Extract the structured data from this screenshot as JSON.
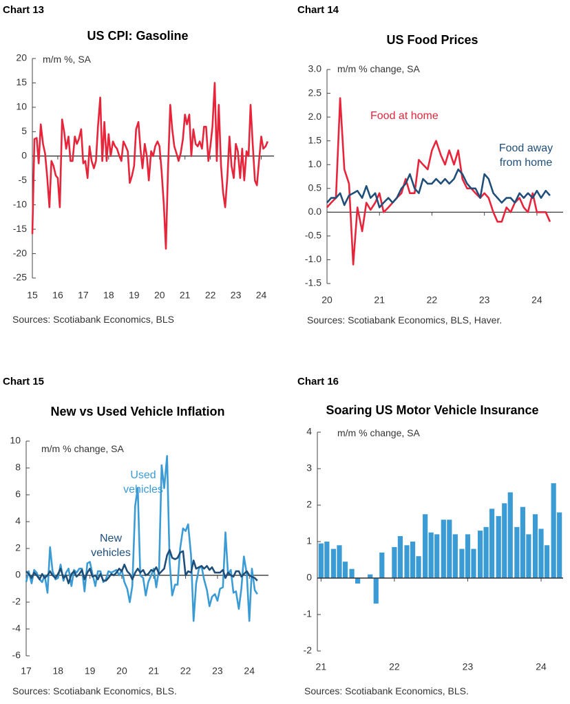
{
  "chart_data": [
    {
      "type": "line",
      "label": "Chart 13",
      "title": "US CPI: Gasoline",
      "y_label": "m/m %, SA",
      "source": "Sources: Scotiabank Economics, BLS",
      "color": "#e8243a",
      "x": [
        15,
        15.08,
        15.17,
        15.25,
        15.33,
        15.42,
        15.5,
        15.58,
        15.67,
        15.75,
        15.83,
        15.92,
        16,
        16.08,
        16.17,
        16.25,
        16.33,
        16.42,
        16.5,
        16.58,
        16.67,
        16.75,
        16.83,
        16.92,
        17,
        17.08,
        17.17,
        17.25,
        17.33,
        17.42,
        17.5,
        17.58,
        17.67,
        17.75,
        17.83,
        17.92,
        18,
        18.08,
        18.17,
        18.25,
        18.33,
        18.42,
        18.5,
        18.58,
        18.67,
        18.75,
        18.83,
        18.92,
        19,
        19.08,
        19.17,
        19.25,
        19.33,
        19.42,
        19.5,
        19.58,
        19.67,
        19.75,
        19.83,
        19.92,
        20,
        20.08,
        20.17,
        20.25,
        20.33,
        20.42,
        20.5,
        20.58,
        20.67,
        20.75,
        20.83,
        20.92,
        21,
        21.08,
        21.17,
        21.25,
        21.33,
        21.42,
        21.5,
        21.58,
        21.67,
        21.75,
        21.83,
        21.92,
        22,
        22.08,
        22.17,
        22.25,
        22.33,
        22.42,
        22.5,
        22.58,
        22.67,
        22.75,
        22.83,
        22.92,
        23,
        23.08,
        23.17,
        23.25,
        23.33,
        23.42,
        23.5,
        23.58,
        23.67,
        23.75,
        23.83,
        23.92,
        24,
        24.08,
        24.17,
        24.25
      ],
      "values": [
        -16,
        3.5,
        3.7,
        -1.5,
        6.5,
        2.5,
        0.5,
        -4,
        -10.5,
        -1,
        -2,
        -4,
        -4.5,
        -10.5,
        7.5,
        5,
        1.5,
        4,
        -1,
        -1,
        4,
        2.5,
        3.5,
        5.5,
        -1.5,
        -1,
        -4.5,
        2,
        -1,
        -2.5,
        -1,
        6,
        12,
        -1,
        7,
        -1,
        4.5,
        0,
        3,
        2,
        1.5,
        0,
        -1,
        3,
        2,
        1,
        -5.5,
        -4,
        -2,
        5.5,
        7,
        1.5,
        -2.5,
        2.5,
        0,
        -5,
        1,
        0,
        2,
        3,
        2,
        -3,
        -10,
        -19,
        -3.5,
        10.5,
        5.5,
        2,
        0.5,
        -1,
        0.5,
        3.5,
        8.5,
        6.5,
        8.5,
        0,
        5.5,
        2.5,
        2,
        3,
        1.5,
        6,
        6,
        -1,
        2,
        6,
        15,
        -1,
        10.5,
        -2,
        -7.5,
        -10.5,
        -4,
        4,
        -2,
        -4.5,
        2.5,
        1,
        -4.5,
        1.5,
        -5,
        1,
        0,
        10.5,
        2,
        -5,
        -6,
        -0.5,
        4,
        1.5,
        2,
        3
      ],
      "xlim": [
        15,
        24.5
      ],
      "xticks": [
        15,
        16,
        17,
        18,
        19,
        20,
        21,
        22,
        23,
        24
      ],
      "ylim": [
        -25,
        20
      ],
      "yticks": [
        -25,
        -20,
        -15,
        -10,
        -5,
        0,
        5,
        10,
        15,
        20
      ]
    },
    {
      "type": "line",
      "label": "Chart 14",
      "title": "US Food Prices",
      "y_label": "m/m % change, SA",
      "source": "Sources: Scotiabank Economics, BLS, Haver.",
      "x": [
        20,
        20.08,
        20.17,
        20.25,
        20.33,
        20.42,
        20.5,
        20.58,
        20.67,
        20.75,
        20.83,
        20.92,
        21,
        21.08,
        21.17,
        21.25,
        21.33,
        21.42,
        21.5,
        21.58,
        21.67,
        21.75,
        21.83,
        21.92,
        22,
        22.08,
        22.17,
        22.25,
        22.33,
        22.42,
        22.5,
        22.58,
        22.67,
        22.75,
        22.83,
        22.92,
        23,
        23.08,
        23.17,
        23.25,
        23.33,
        23.42,
        23.5,
        23.58,
        23.67,
        23.75,
        23.83,
        23.92,
        24,
        24.08,
        24.17,
        24.25
      ],
      "series": [
        {
          "name": "Food at home",
          "color": "#e8243a",
          "values": [
            0.1,
            0.2,
            0.3,
            2.4,
            0.9,
            0.6,
            -1.1,
            0.1,
            -0.4,
            0.2,
            0.05,
            0.2,
            0.4,
            0,
            0.1,
            0.2,
            0.3,
            0.4,
            0.7,
            0.4,
            0.4,
            1.1,
            1,
            0.9,
            1.3,
            1.5,
            1.2,
            1,
            1.3,
            1,
            1.3,
            0.7,
            0.5,
            0.5,
            0.4,
            0.3,
            0.4,
            0.3,
            0,
            -0.2,
            -0.2,
            0.1,
            0,
            0.2,
            0.3,
            0.1,
            0,
            0.4,
            0,
            0,
            0,
            -0.2
          ]
        },
        {
          "name": "Food away from home",
          "color": "#1f4e79",
          "values": [
            0.2,
            0.3,
            0.3,
            0.4,
            0.15,
            0.35,
            0.4,
            0.45,
            0.3,
            0.55,
            0.3,
            0.4,
            0.1,
            0.2,
            0.3,
            0.2,
            0.3,
            0.5,
            0.6,
            0.8,
            0.5,
            0.4,
            0.7,
            0.6,
            0.6,
            0.7,
            0.6,
            0.7,
            0.6,
            0.7,
            0.9,
            0.8,
            0.6,
            0.5,
            0.5,
            0.3,
            0.8,
            0.7,
            0.4,
            0.3,
            0.2,
            0.3,
            0.3,
            0.2,
            0.4,
            0.3,
            0.4,
            0.3,
            0.45,
            0.3,
            0.45,
            0.35
          ]
        }
      ],
      "xlim": [
        20,
        24.5
      ],
      "xticks": [
        20,
        21,
        22,
        23,
        24
      ],
      "ylim": [
        -1.5,
        3
      ],
      "yticks": [
        {
          "value": -1.5,
          "label": "-1.5"
        },
        {
          "value": -1,
          "label": "-1.0"
        },
        {
          "value": -0.5,
          "label": "-0.5"
        },
        {
          "value": 0,
          "label": "0.0"
        },
        {
          "value": 0.5,
          "label": "0.5"
        },
        {
          "value": 1,
          "label": "1.0"
        },
        {
          "value": 1.5,
          "label": "1.5"
        },
        {
          "value": 2,
          "label": "2.0"
        },
        {
          "value": 2.5,
          "label": "2.5"
        },
        {
          "value": 3,
          "label": "3.0"
        }
      ]
    },
    {
      "type": "line",
      "label": "Chart 15",
      "title": "New vs Used Vehicle Inflation",
      "y_label": "m/m % change, SA",
      "source": "Sources: Scotiabank Economics, BLS.",
      "x": [
        17,
        17.08,
        17.17,
        17.25,
        17.33,
        17.42,
        17.5,
        17.58,
        17.67,
        17.75,
        17.83,
        17.92,
        18,
        18.08,
        18.17,
        18.25,
        18.33,
        18.42,
        18.5,
        18.58,
        18.67,
        18.75,
        18.83,
        18.92,
        19,
        19.08,
        19.17,
        19.25,
        19.33,
        19.42,
        19.5,
        19.58,
        19.67,
        19.75,
        19.83,
        19.92,
        20,
        20.08,
        20.17,
        20.25,
        20.33,
        20.42,
        20.5,
        20.58,
        20.67,
        20.75,
        20.83,
        20.92,
        21,
        21.08,
        21.17,
        21.25,
        21.33,
        21.42,
        21.5,
        21.58,
        21.67,
        21.75,
        21.83,
        21.92,
        22,
        22.08,
        22.17,
        22.25,
        22.33,
        22.42,
        22.5,
        22.58,
        22.67,
        22.75,
        22.83,
        22.92,
        23,
        23.08,
        23.17,
        23.25,
        23.33,
        23.42,
        23.5,
        23.58,
        23.67,
        23.75,
        23.83,
        23.92,
        24,
        24.08,
        24.17,
        24.25
      ],
      "series": [
        {
          "name": "Used vehicles",
          "color": "#3a9bd5",
          "values": [
            -0.5,
            0.3,
            -0.6,
            0.4,
            0.2,
            -0.3,
            -0.5,
            0,
            -1.3,
            2.1,
            0.3,
            -0.3,
            -0.2,
            0.8,
            -0.4,
            0.2,
            0.5,
            -0.8,
            0.4,
            0.2,
            0.5,
            0.5,
            -1.2,
            0.9,
            1,
            0.1,
            -0.8,
            0.3,
            0.3,
            -0.5,
            -0.3,
            0.3,
            0.2,
            0.3,
            0.4,
            0,
            0.4,
            -0.5,
            -1,
            -2,
            -0.8,
            5.2,
            6.5,
            0,
            -0.2,
            -1.5,
            -0.5,
            0,
            0.5,
            -0.9,
            0.5,
            8.2,
            6.5,
            8.9,
            1,
            -1.5,
            -0.7,
            -0.7,
            2,
            3.5,
            3.3,
            3.8,
            1.5,
            -3.4,
            -0.6,
            0.5,
            0.7,
            -0.3,
            -1.1,
            -2.3,
            -1.6,
            -1.4,
            -1.9,
            -1,
            -0.9,
            3.2,
            0.1,
            0.4,
            -1.3,
            -1.2,
            -2.5,
            -1,
            1.4,
            0.1,
            -3.4,
            0.5,
            -1.1,
            -1.4
          ]
        },
        {
          "name": "New vehicles",
          "color": "#1f4e79",
          "values": [
            0.3,
            0.1,
            -0.2,
            0.2,
            0,
            -0.3,
            0.1,
            -0.2,
            0,
            0.3,
            0,
            -0.2,
            0.1,
            0.5,
            -0.2,
            0,
            -0.6,
            0.1,
            0.3,
            -0.1,
            0.1,
            0.4,
            -0.3,
            0.2,
            0.5,
            -0.1,
            0,
            -0.3,
            0.1,
            -0.4,
            -0.4,
            -0.2,
            0.1,
            0,
            0.2,
            0.5,
            0.3,
            0.8,
            0.3,
            0.1,
            -0.3,
            0.2,
            0.5,
            0.2,
            0.4,
            0,
            0.1,
            0.4,
            0.3,
            0.6,
            0.1,
            0.3,
            0.5,
            1.5,
            1.9,
            1.3,
            1.2,
            1.3,
            1.7,
            1.8,
            0,
            0.3,
            0.2,
            1.1,
            0.5,
            0.6,
            0.7,
            0.5,
            0.7,
            0.4,
            0.6,
            0.2,
            0.2,
            0.2,
            0.4,
            -0.2,
            0.2,
            0,
            -0.1,
            0.3,
            0.3,
            -0.1,
            0.1,
            0.3,
            0,
            -0.1,
            -0.2,
            -0.4
          ]
        }
      ],
      "xlim": [
        17,
        24.6
      ],
      "xticks": [
        17,
        18,
        19,
        20,
        21,
        22,
        23,
        24
      ],
      "ylim": [
        -6,
        10
      ],
      "yticks": [
        -6,
        -4,
        -2,
        0,
        2,
        4,
        6,
        8,
        10
      ]
    },
    {
      "type": "bar",
      "label": "Chart 16",
      "title": "Soaring US Motor Vehicle Insurance",
      "y_label": "m/m % change, SA",
      "source": "Sources: Scotiabank Economics, BLS.",
      "color": "#3a9bd5",
      "x": [
        21,
        21.08,
        21.17,
        21.25,
        21.33,
        21.42,
        21.5,
        21.58,
        21.67,
        21.75,
        21.83,
        21.92,
        22,
        22.08,
        22.17,
        22.25,
        22.33,
        22.42,
        22.5,
        22.58,
        22.67,
        22.75,
        22.83,
        22.92,
        23,
        23.08,
        23.17,
        23.25,
        23.33,
        23.42,
        23.5,
        23.58,
        23.67,
        23.75,
        23.83,
        23.92,
        24,
        24.08,
        24.17,
        24.25
      ],
      "values": [
        0.95,
        1,
        0.8,
        0.9,
        0.45,
        0.25,
        -0.15,
        0,
        0.1,
        -0.7,
        0.7,
        0,
        0.85,
        1.15,
        0.9,
        1,
        0.6,
        1.75,
        1.25,
        1.2,
        1.6,
        1.6,
        1.2,
        0.8,
        1.2,
        0.8,
        1.3,
        1.4,
        1.9,
        1.7,
        2.05,
        2.35,
        1.4,
        1.95,
        1.2,
        1.75,
        1.35,
        0.9,
        2.6,
        1.8
      ],
      "xlim": [
        20.95,
        24.3
      ],
      "xticks": [
        21,
        22,
        23,
        24
      ],
      "ylim": [
        -2,
        4
      ],
      "yticks": [
        -2,
        -1,
        0,
        1,
        2,
        3,
        4
      ]
    }
  ]
}
